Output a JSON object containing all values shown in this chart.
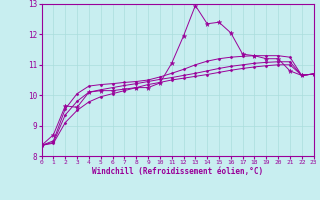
{
  "bg_color": "#c8eef0",
  "line_color": "#990099",
  "grid_color": "#aadddd",
  "xlabel": "Windchill (Refroidissement éolien,°C)",
  "xlim": [
    0,
    23
  ],
  "ylim": [
    8,
    13
  ],
  "yticks": [
    8,
    9,
    10,
    11,
    12,
    13
  ],
  "xticks": [
    0,
    1,
    2,
    3,
    4,
    5,
    6,
    7,
    8,
    9,
    10,
    11,
    12,
    13,
    14,
    15,
    16,
    17,
    18,
    19,
    20,
    21,
    22,
    23
  ],
  "lines": [
    {
      "x": [
        0,
        1,
        2,
        3,
        4,
        5,
        6,
        7,
        8,
        9,
        10,
        11,
        12,
        13,
        14,
        15,
        16,
        17,
        18,
        19,
        20,
        21,
        22,
        23
      ],
      "y": [
        8.35,
        8.7,
        9.65,
        9.6,
        10.1,
        10.15,
        10.15,
        10.2,
        10.25,
        10.25,
        10.4,
        11.05,
        11.95,
        12.95,
        12.35,
        12.4,
        12.05,
        11.35,
        11.3,
        11.2,
        11.2,
        10.8,
        10.65,
        10.7
      ],
      "marker": "*",
      "markersize": 3.5
    },
    {
      "x": [
        0,
        1,
        2,
        3,
        4,
        5,
        6,
        7,
        8,
        9,
        10,
        11,
        12,
        13,
        14,
        15,
        16,
        17,
        18,
        19,
        20,
        21,
        22,
        23
      ],
      "y": [
        8.35,
        8.5,
        9.55,
        10.05,
        10.3,
        10.35,
        10.38,
        10.42,
        10.45,
        10.5,
        10.6,
        10.72,
        10.85,
        11.0,
        11.12,
        11.2,
        11.25,
        11.28,
        11.3,
        11.3,
        11.3,
        11.25,
        10.65,
        10.7
      ],
      "marker": "D",
      "markersize": 1.5
    },
    {
      "x": [
        0,
        1,
        2,
        3,
        4,
        5,
        6,
        7,
        8,
        9,
        10,
        11,
        12,
        13,
        14,
        15,
        16,
        17,
        18,
        19,
        20,
        21,
        22,
        23
      ],
      "y": [
        8.35,
        8.45,
        9.35,
        9.8,
        10.1,
        10.18,
        10.25,
        10.32,
        10.38,
        10.45,
        10.52,
        10.58,
        10.65,
        10.72,
        10.8,
        10.88,
        10.95,
        11.0,
        11.05,
        11.08,
        11.1,
        11.1,
        10.65,
        10.7
      ],
      "marker": "D",
      "markersize": 1.5
    },
    {
      "x": [
        0,
        1,
        2,
        3,
        4,
        5,
        6,
        7,
        8,
        9,
        10,
        11,
        12,
        13,
        14,
        15,
        16,
        17,
        18,
        19,
        20,
        21,
        22,
        23
      ],
      "y": [
        8.35,
        8.42,
        9.1,
        9.5,
        9.78,
        9.95,
        10.05,
        10.15,
        10.25,
        10.35,
        10.42,
        10.5,
        10.56,
        10.62,
        10.68,
        10.75,
        10.82,
        10.88,
        10.93,
        10.97,
        11.0,
        11.0,
        10.65,
        10.7
      ],
      "marker": "D",
      "markersize": 1.5
    }
  ]
}
